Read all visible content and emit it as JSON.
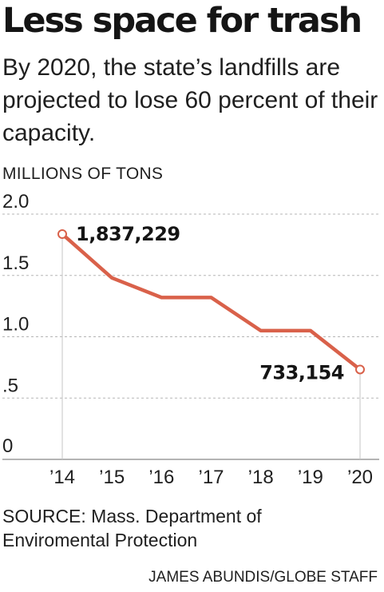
{
  "title": "Less space for trash",
  "subtitle": "By 2020, the state’s landfills are projected to lose 60 percent of their capacity.",
  "unit_label": "MILLIONS OF TONS",
  "source": "SOURCE: Mass. Department of Enviromental Protection",
  "credit": "JAMES ABUNDIS/GLOBE STAFF",
  "colors": {
    "line": "#d9614a",
    "grid": "#b5b5b5",
    "axis": "#888888"
  },
  "chart_data": {
    "type": "line",
    "title": "Less space for trash",
    "ylabel": "MILLIONS OF TONS",
    "xlabel": "",
    "categories": [
      "’14",
      "’15",
      "’16",
      "’17",
      "’18",
      "’19",
      "’20"
    ],
    "ylim": [
      0,
      2.0
    ],
    "yticks": [
      0,
      0.5,
      1.0,
      1.5,
      2.0
    ],
    "ytick_labels": [
      "0",
      ".5",
      "1.0",
      "1.5",
      "2.0"
    ],
    "grid": true,
    "series": [
      {
        "values": [
          1.837229,
          1.48,
          1.32,
          1.32,
          1.05,
          1.05,
          0.733154
        ]
      }
    ],
    "annotations": [
      {
        "index": 0,
        "text": "1,837,229"
      },
      {
        "index": 6,
        "text": "733,154"
      }
    ]
  }
}
